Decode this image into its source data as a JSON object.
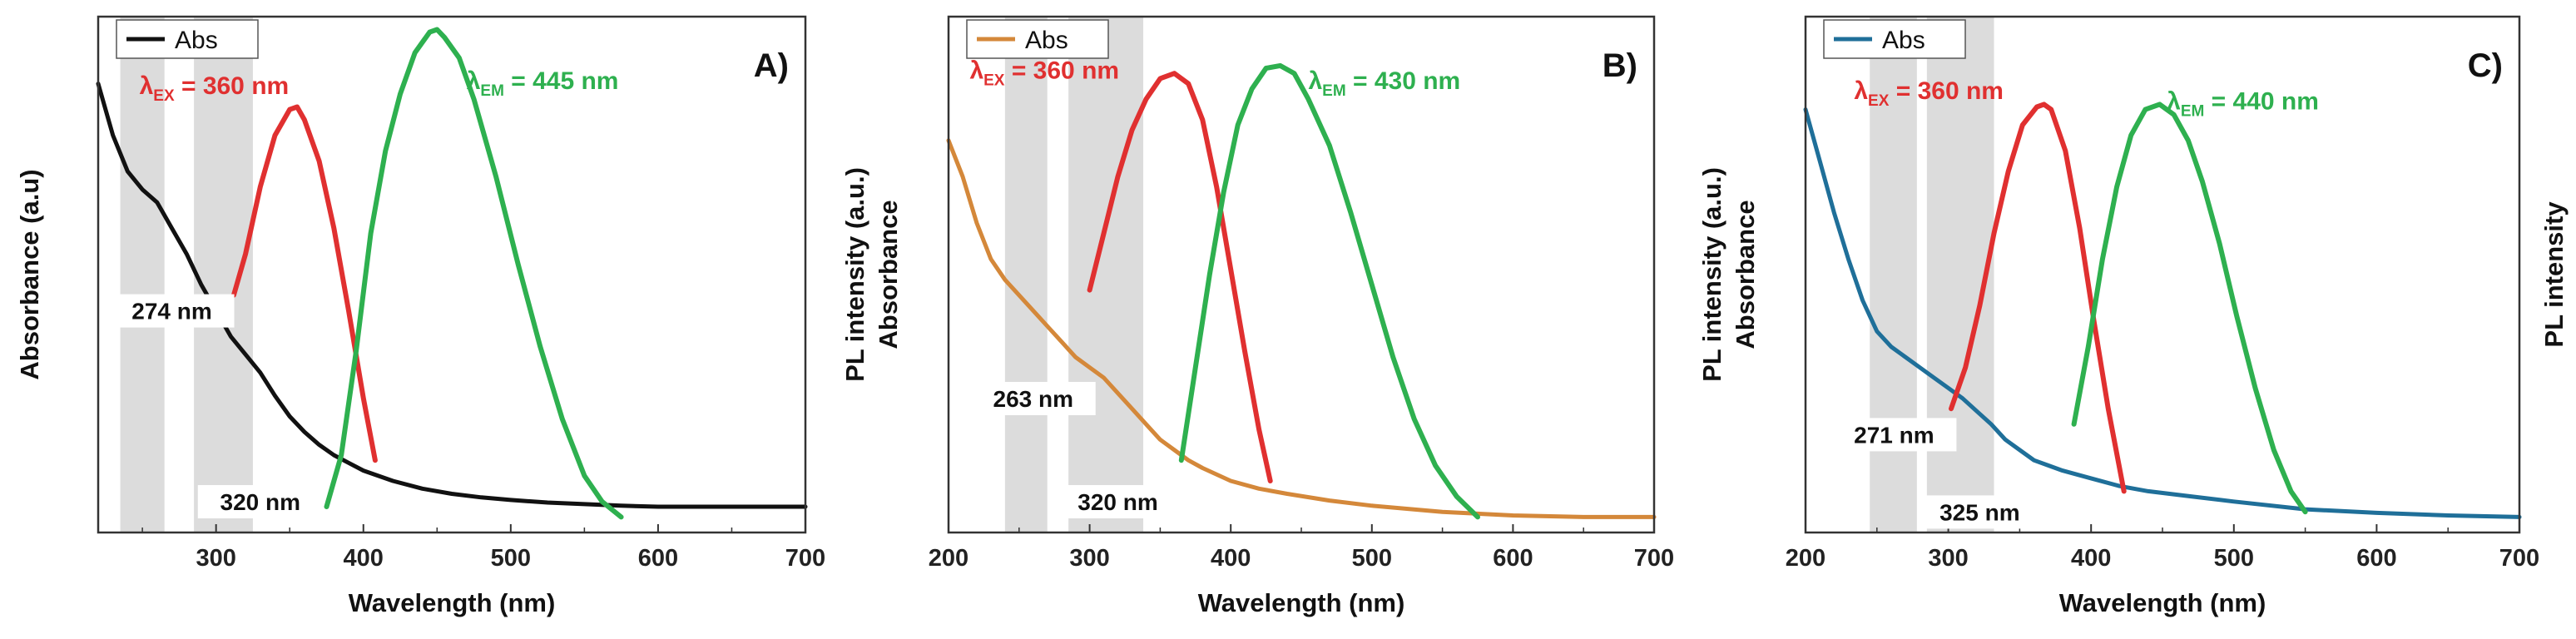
{
  "chart_data": [
    {
      "type": "line",
      "panel": "A)",
      "xlabel": "Wavelength (nm)",
      "ylabel_left": "Absorbance (a.u)",
      "ylabel_right": "",
      "xlim": [
        220,
        700
      ],
      "xticks": [
        300,
        400,
        500,
        600,
        700
      ],
      "legend": "Abs",
      "abs_color": "#111111",
      "shaded_bands": [
        [
          235,
          265
        ],
        [
          285,
          325
        ]
      ],
      "peak_labels": [
        {
          "text": "274 nm",
          "x": 270,
          "y": 0.42
        },
        {
          "text": "320 nm",
          "x": 330,
          "y": 0.05
        }
      ],
      "excitation_label": {
        "text": "λ",
        "sub": "EX",
        "rest": " = 360 nm",
        "color": "#e03030",
        "x": 248,
        "y": 0.85
      },
      "emission_label": {
        "text": "λ",
        "sub": "EM",
        "rest": " = 445 nm",
        "color": "#2eb04f",
        "x": 470,
        "y": 0.86
      },
      "series": [
        {
          "name": "Abs",
          "color": "#111111",
          "x": [
            220,
            230,
            240,
            250,
            260,
            270,
            280,
            290,
            300,
            310,
            320,
            330,
            340,
            350,
            360,
            370,
            380,
            390,
            400,
            420,
            440,
            460,
            480,
            500,
            525,
            550,
            575,
            600,
            650,
            700
          ],
          "y": [
            0.87,
            0.77,
            0.7,
            0.665,
            0.64,
            0.59,
            0.54,
            0.48,
            0.43,
            0.38,
            0.345,
            0.31,
            0.265,
            0.225,
            0.195,
            0.17,
            0.15,
            0.135,
            0.12,
            0.1,
            0.085,
            0.075,
            0.068,
            0.063,
            0.058,
            0.055,
            0.052,
            0.05,
            0.05,
            0.05
          ]
        },
        {
          "name": "Excitation",
          "color": "#e03030",
          "x": [
            312,
            320,
            330,
            340,
            350,
            355,
            360,
            370,
            380,
            390,
            400,
            408
          ],
          "y": [
            0.46,
            0.54,
            0.67,
            0.77,
            0.82,
            0.825,
            0.8,
            0.72,
            0.59,
            0.43,
            0.26,
            0.14
          ]
        },
        {
          "name": "Emission",
          "color": "#2eb04f",
          "x": [
            375,
            385,
            395,
            405,
            415,
            425,
            435,
            445,
            450,
            455,
            465,
            475,
            490,
            505,
            520,
            535,
            550,
            562,
            575
          ],
          "y": [
            0.05,
            0.15,
            0.35,
            0.58,
            0.74,
            0.85,
            0.93,
            0.97,
            0.975,
            0.96,
            0.92,
            0.84,
            0.69,
            0.52,
            0.36,
            0.22,
            0.11,
            0.06,
            0.03
          ]
        }
      ]
    },
    {
      "type": "line",
      "panel": "B)",
      "xlabel": "Wavelength (nm)",
      "ylabel_left": "Absorbance",
      "ylabel_right": "PL intensity (a.u.)",
      "xlim": [
        200,
        700
      ],
      "xticks": [
        200,
        300,
        400,
        500,
        600,
        700
      ],
      "legend": "Abs",
      "abs_color": "#d4883a",
      "shaded_bands": [
        [
          240,
          270
        ],
        [
          285,
          338
        ]
      ],
      "peak_labels": [
        {
          "text": "263 nm",
          "x": 260,
          "y": 0.25
        },
        {
          "text": "320 nm",
          "x": 320,
          "y": 0.05
        }
      ],
      "excitation_label": {
        "text": "λ",
        "sub": "EX",
        "rest": " = 360 nm",
        "color": "#e03030",
        "x": 215,
        "y": 0.88
      },
      "emission_label": {
        "text": "λ",
        "sub": "EM",
        "rest": " = 430 nm",
        "color": "#2eb04f",
        "x": 455,
        "y": 0.86
      },
      "series": [
        {
          "name": "Abs",
          "color": "#d4883a",
          "x": [
            200,
            210,
            220,
            230,
            240,
            250,
            260,
            270,
            280,
            290,
            300,
            310,
            320,
            330,
            340,
            350,
            360,
            370,
            380,
            400,
            420,
            440,
            470,
            500,
            550,
            600,
            650,
            700
          ],
          "y": [
            0.76,
            0.69,
            0.6,
            0.53,
            0.49,
            0.46,
            0.43,
            0.4,
            0.37,
            0.34,
            0.32,
            0.3,
            0.27,
            0.24,
            0.21,
            0.18,
            0.16,
            0.14,
            0.125,
            0.1,
            0.085,
            0.075,
            0.062,
            0.052,
            0.04,
            0.033,
            0.03,
            0.03
          ]
        },
        {
          "name": "Excitation",
          "color": "#e03030",
          "x": [
            300,
            310,
            320,
            330,
            340,
            350,
            360,
            370,
            380,
            390,
            400,
            410,
            420,
            428
          ],
          "y": [
            0.47,
            0.58,
            0.69,
            0.78,
            0.84,
            0.88,
            0.89,
            0.87,
            0.8,
            0.67,
            0.51,
            0.35,
            0.2,
            0.1
          ]
        },
        {
          "name": "Emission",
          "color": "#2eb04f",
          "x": [
            365,
            375,
            385,
            395,
            405,
            415,
            425,
            435,
            445,
            455,
            470,
            485,
            500,
            515,
            530,
            545,
            560,
            575
          ],
          "y": [
            0.14,
            0.32,
            0.5,
            0.66,
            0.79,
            0.86,
            0.9,
            0.905,
            0.89,
            0.84,
            0.75,
            0.62,
            0.48,
            0.34,
            0.22,
            0.13,
            0.07,
            0.03
          ]
        }
      ]
    },
    {
      "type": "line",
      "panel": "C)",
      "xlabel": "Wavelength (nm)",
      "ylabel_left": "Absorbance",
      "ylabel_right": "PL intensity (a.u.)",
      "ylabel_far_right": "PL intensity",
      "xlim": [
        200,
        700
      ],
      "xticks": [
        200,
        300,
        400,
        500,
        600,
        700
      ],
      "legend": "Abs",
      "abs_color": "#1f6f99",
      "shaded_bands": [
        [
          245,
          278
        ],
        [
          285,
          332
        ]
      ],
      "peak_labels": [
        {
          "text": "271 nm",
          "x": 262,
          "y": 0.18
        },
        {
          "text": "325 nm",
          "x": 322,
          "y": 0.03
        }
      ],
      "excitation_label": {
        "text": "λ",
        "sub": "EX",
        "rest": " = 360 nm",
        "color": "#e03030",
        "x": 234,
        "y": 0.84
      },
      "emission_label": {
        "text": "λ",
        "sub": "EM",
        "rest": " = 440 nm",
        "color": "#2eb04f",
        "x": 453,
        "y": 0.82
      },
      "series": [
        {
          "name": "Abs",
          "color": "#1f6f99",
          "x": [
            200,
            210,
            220,
            230,
            240,
            250,
            260,
            270,
            280,
            290,
            300,
            310,
            320,
            330,
            340,
            350,
            360,
            370,
            380,
            400,
            420,
            440,
            470,
            500,
            550,
            600,
            650,
            700
          ],
          "y": [
            0.82,
            0.72,
            0.62,
            0.53,
            0.45,
            0.39,
            0.36,
            0.34,
            0.32,
            0.3,
            0.28,
            0.26,
            0.235,
            0.21,
            0.18,
            0.16,
            0.14,
            0.13,
            0.12,
            0.105,
            0.09,
            0.08,
            0.07,
            0.06,
            0.045,
            0.038,
            0.033,
            0.03
          ]
        },
        {
          "name": "Excitation",
          "color": "#e03030",
          "x": [
            302,
            312,
            322,
            332,
            342,
            352,
            362,
            367,
            372,
            382,
            392,
            402,
            412,
            423
          ],
          "y": [
            0.24,
            0.32,
            0.44,
            0.58,
            0.7,
            0.79,
            0.825,
            0.83,
            0.82,
            0.74,
            0.59,
            0.41,
            0.24,
            0.08
          ]
        },
        {
          "name": "Emission",
          "color": "#2eb04f",
          "x": [
            388,
            398,
            408,
            418,
            428,
            438,
            448,
            458,
            468,
            478,
            490,
            502,
            515,
            528,
            540,
            550
          ],
          "y": [
            0.21,
            0.36,
            0.53,
            0.67,
            0.77,
            0.82,
            0.83,
            0.81,
            0.76,
            0.68,
            0.56,
            0.42,
            0.28,
            0.16,
            0.08,
            0.04
          ]
        }
      ]
    }
  ]
}
